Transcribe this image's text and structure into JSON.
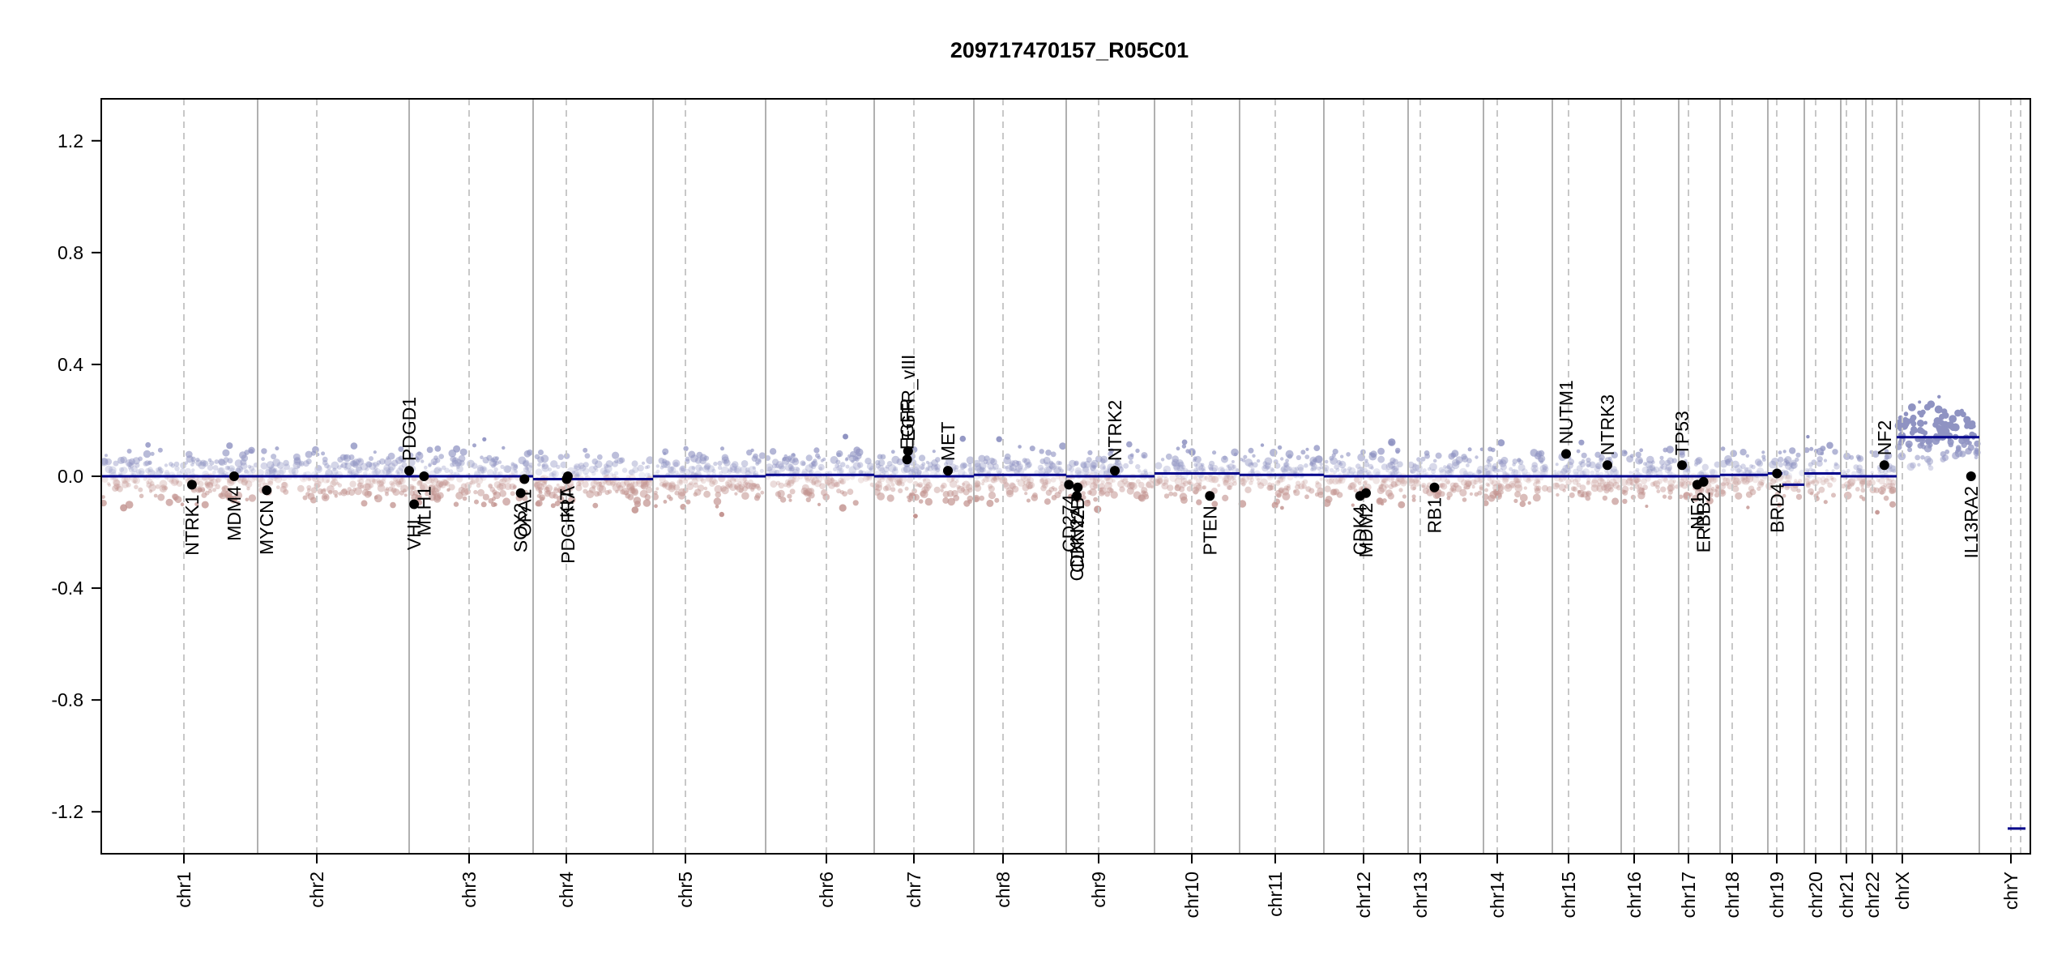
{
  "chart_data": {
    "type": "scatter",
    "title": "209717470157_R05C01",
    "xlabel": "",
    "ylabel": "",
    "ylim": [
      -1.35,
      1.35
    ],
    "yticks": [
      -1.2,
      -0.8,
      -0.4,
      0.0,
      0.4,
      0.8,
      1.2
    ],
    "ytick_labels": [
      "-1.2",
      "-0.8",
      "-0.4",
      "0.0",
      "0.4",
      "0.8",
      "1.2"
    ],
    "grid": false,
    "colors": {
      "gain_points": "#8f93c2",
      "loss_points": "#c2938f",
      "segment_line": "#00008b",
      "boundary_line": "#b0b0b0",
      "centromere_line": "#c8c8c8",
      "gene_marker": "#000000"
    },
    "chromosomes": [
      {
        "name": "chr1",
        "segments": [
          {
            "start": 0.0,
            "end": 1.0,
            "value": 0.0
          }
        ]
      },
      {
        "name": "chr2",
        "segments": [
          {
            "start": 0.0,
            "end": 1.0,
            "value": 0.0
          }
        ]
      },
      {
        "name": "chr3",
        "segments": [
          {
            "start": 0.0,
            "end": 1.0,
            "value": 0.0
          }
        ]
      },
      {
        "name": "chr4",
        "segments": [
          {
            "start": 0.0,
            "end": 1.0,
            "value": -0.01
          }
        ]
      },
      {
        "name": "chr5",
        "segments": [
          {
            "start": 0.0,
            "end": 1.0,
            "value": 0.0
          }
        ]
      },
      {
        "name": "chr6",
        "segments": [
          {
            "start": 0.0,
            "end": 1.0,
            "value": 0.005
          }
        ]
      },
      {
        "name": "chr7",
        "segments": [
          {
            "start": 0.0,
            "end": 1.0,
            "value": 0.0
          }
        ]
      },
      {
        "name": "chr8",
        "segments": [
          {
            "start": 0.0,
            "end": 1.0,
            "value": 0.005
          }
        ]
      },
      {
        "name": "chr9",
        "segments": [
          {
            "start": 0.0,
            "end": 1.0,
            "value": 0.0
          }
        ]
      },
      {
        "name": "chr10",
        "segments": [
          {
            "start": 0.0,
            "end": 1.0,
            "value": 0.01
          }
        ]
      },
      {
        "name": "chr11",
        "segments": [
          {
            "start": 0.0,
            "end": 1.0,
            "value": 0.005
          }
        ]
      },
      {
        "name": "chr12",
        "segments": [
          {
            "start": 0.0,
            "end": 1.0,
            "value": 0.0
          }
        ]
      },
      {
        "name": "chr13",
        "segments": [
          {
            "start": 0.0,
            "end": 1.0,
            "value": 0.0
          }
        ]
      },
      {
        "name": "chr14",
        "segments": [
          {
            "start": 0.0,
            "end": 1.0,
            "value": 0.0
          }
        ]
      },
      {
        "name": "chr15",
        "segments": [
          {
            "start": 0.0,
            "end": 1.0,
            "value": 0.0
          }
        ]
      },
      {
        "name": "chr16",
        "segments": [
          {
            "start": 0.0,
            "end": 1.0,
            "value": 0.0
          }
        ]
      },
      {
        "name": "chr17",
        "segments": [
          {
            "start": 0.0,
            "end": 1.0,
            "value": 0.0
          }
        ]
      },
      {
        "name": "chr18",
        "segments": [
          {
            "start": 0.0,
            "end": 1.0,
            "value": 0.005
          }
        ]
      },
      {
        "name": "chr19",
        "segments": [
          {
            "start": 0.0,
            "end": 0.4,
            "value": 0.01
          },
          {
            "start": 0.4,
            "end": 1.0,
            "value": -0.03
          }
        ]
      },
      {
        "name": "chr20",
        "segments": [
          {
            "start": 0.0,
            "end": 1.0,
            "value": 0.01
          }
        ]
      },
      {
        "name": "chr21",
        "segments": [
          {
            "start": 0.0,
            "end": 1.0,
            "value": 0.0
          }
        ]
      },
      {
        "name": "chr22",
        "segments": [
          {
            "start": 0.0,
            "end": 1.0,
            "value": 0.0
          }
        ]
      },
      {
        "name": "chrX",
        "segments": [
          {
            "start": 0.0,
            "end": 1.0,
            "value": 0.14
          }
        ]
      },
      {
        "name": "chrY",
        "segments": [
          {
            "start": 0.0,
            "end": 1.0,
            "value": -1.26
          }
        ]
      }
    ],
    "genes": [
      {
        "name": "NTRK1",
        "chrom": "chr1",
        "pos": 0.58,
        "value": -0.03
      },
      {
        "name": "MDM4",
        "chrom": "chr1",
        "pos": 0.85,
        "value": 0.0
      },
      {
        "name": "MYCN",
        "chrom": "chr2",
        "pos": 0.06,
        "value": -0.05
      },
      {
        "name": "VHL",
        "chrom": "chr3",
        "pos": 0.04,
        "value": -0.1
      },
      {
        "name": "PDGD1",
        "chrom": "chr2",
        "pos": 1.0,
        "value": 0.02
      },
      {
        "name": "MLH1",
        "chrom": "chr3",
        "pos": 0.12,
        "value": 0.0
      },
      {
        "name": "SOX2",
        "chrom": "chr3",
        "pos": 0.9,
        "value": -0.06
      },
      {
        "name": "OPA1",
        "chrom": "chr3",
        "pos": 0.93,
        "value": -0.01
      },
      {
        "name": "KIT",
        "chrom": "chr4",
        "pos": 0.28,
        "value": -0.01
      },
      {
        "name": "PDGFRA",
        "chrom": "chr4",
        "pos": 0.29,
        "value": 0.0
      },
      {
        "name": "EGFR",
        "chrom": "chr7",
        "pos": 0.33,
        "value": 0.06
      },
      {
        "name": "EGFR_vIII",
        "chrom": "chr7",
        "pos": 0.34,
        "value": 0.09
      },
      {
        "name": "MET",
        "chrom": "chr7",
        "pos": 0.74,
        "value": 0.02
      },
      {
        "name": "CD274",
        "chrom": "chr9",
        "pos": 0.03,
        "value": -0.03
      },
      {
        "name": "CDKN2A",
        "chrom": "chr9",
        "pos": 0.12,
        "value": -0.07
      },
      {
        "name": "CDKN2B",
        "chrom": "chr9",
        "pos": 0.13,
        "value": -0.04
      },
      {
        "name": "NTRK2",
        "chrom": "chr9",
        "pos": 0.55,
        "value": 0.02
      },
      {
        "name": "PTEN",
        "chrom": "chr10",
        "pos": 0.65,
        "value": -0.07
      },
      {
        "name": "CDK4",
        "chrom": "chr12",
        "pos": 0.43,
        "value": -0.07
      },
      {
        "name": "MDM2",
        "chrom": "chr12",
        "pos": 0.5,
        "value": -0.06
      },
      {
        "name": "RB1",
        "chrom": "chr13",
        "pos": 0.35,
        "value": -0.04
      },
      {
        "name": "NUTM1",
        "chrom": "chr15",
        "pos": 0.2,
        "value": 0.08
      },
      {
        "name": "NTRK3",
        "chrom": "chr15",
        "pos": 0.8,
        "value": 0.04
      },
      {
        "name": "TP53",
        "chrom": "chr17",
        "pos": 0.08,
        "value": 0.04
      },
      {
        "name": "NF1",
        "chrom": "chr17",
        "pos": 0.45,
        "value": -0.03
      },
      {
        "name": "ERBB2",
        "chrom": "chr17",
        "pos": 0.6,
        "value": -0.02
      },
      {
        "name": "BRD4",
        "chrom": "chr19",
        "pos": 0.25,
        "value": 0.01
      },
      {
        "name": "NF2",
        "chrom": "chr22",
        "pos": 0.6,
        "value": 0.04
      },
      {
        "name": "IL13RA2",
        "chrom": "chrX",
        "pos": 0.9,
        "value": 0.0
      }
    ]
  }
}
